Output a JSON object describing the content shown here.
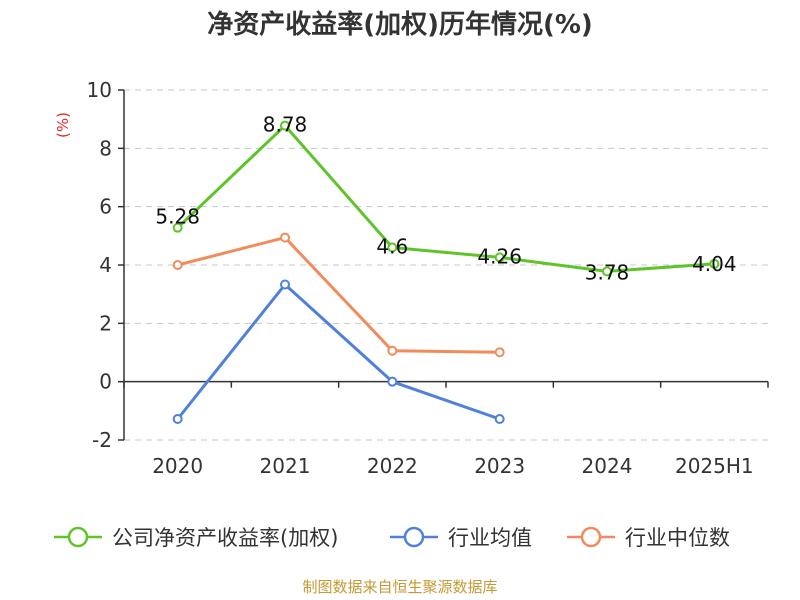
{
  "chart_data": {
    "type": "line",
    "title": "净资产收益率(加权)历年情况(%)",
    "ylabel": "(%)",
    "xlabel": "",
    "categories": [
      "2020",
      "2021",
      "2022",
      "2023",
      "2024",
      "2025H1"
    ],
    "ylim": [
      -2,
      10
    ],
    "yticks": [
      -2,
      0,
      2,
      4,
      6,
      8,
      10
    ],
    "grid": true,
    "legend_position": "bottom",
    "series": [
      {
        "name": "公司净资产收益率(加权)",
        "color": "#5fc32a",
        "values": [
          5.28,
          8.78,
          4.6,
          4.26,
          3.78,
          4.04
        ],
        "labels": [
          "5.28",
          "8.78",
          "4.6",
          "4.26",
          "3.78",
          "4.04"
        ]
      },
      {
        "name": "行业均值",
        "color": "#4f81d8",
        "values": [
          -1.28,
          3.33,
          0.0,
          -1.28,
          null,
          null
        ]
      },
      {
        "name": "行业中位数",
        "color": "#f08c5c",
        "values": [
          4.0,
          4.94,
          1.06,
          1.01,
          null,
          null
        ]
      }
    ]
  },
  "source": "制图数据来自恒生聚源数据库"
}
